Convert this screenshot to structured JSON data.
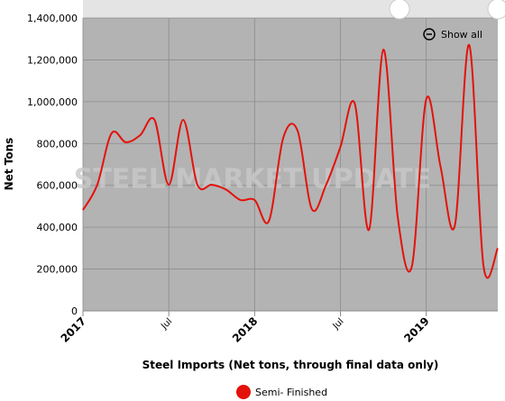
{
  "chart_data": {
    "type": "line",
    "title": "Steel Imports (Net tons, through final data only)",
    "y_label": "Net Tons",
    "watermark": "STEEL MARKET UPDATE",
    "reset_button": "Show all",
    "categories": [
      "2017",
      null,
      null,
      null,
      null,
      null,
      "Jul",
      null,
      null,
      null,
      null,
      null,
      "2018",
      null,
      null,
      null,
      null,
      null,
      "Jul",
      null,
      null,
      null,
      null,
      null,
      "2019",
      null,
      null,
      null,
      null,
      null
    ],
    "series": [
      {
        "name": "Semi- Finished",
        "color": "#e3120b",
        "values": [
          482000,
          603000,
          849000,
          806000,
          840000,
          913000,
          603000,
          913000,
          603000,
          603000,
          580000,
          530000,
          530000,
          430000,
          827000,
          862000,
          487000,
          603000,
          784000,
          991000,
          388000,
          1249000,
          452000,
          215000,
          1012000,
          689000,
          409000,
          1271000,
          215000,
          300000
        ]
      }
    ],
    "ylim": [
      0,
      1400000
    ],
    "yticks": [
      0,
      {
        "value": 200000,
        "label": "200,000"
      },
      {
        "value": 400000,
        "label": "400,000"
      },
      {
        "value": 600000,
        "label": "600,000"
      },
      {
        "value": 800000,
        "label": "800,000"
      },
      {
        "value": 1000000,
        "label": "1,000,000"
      },
      {
        "value": 1200000,
        "label": "1,200,000"
      },
      {
        "value": 1400000,
        "label": "1,400,000"
      }
    ],
    "grid": true
  }
}
